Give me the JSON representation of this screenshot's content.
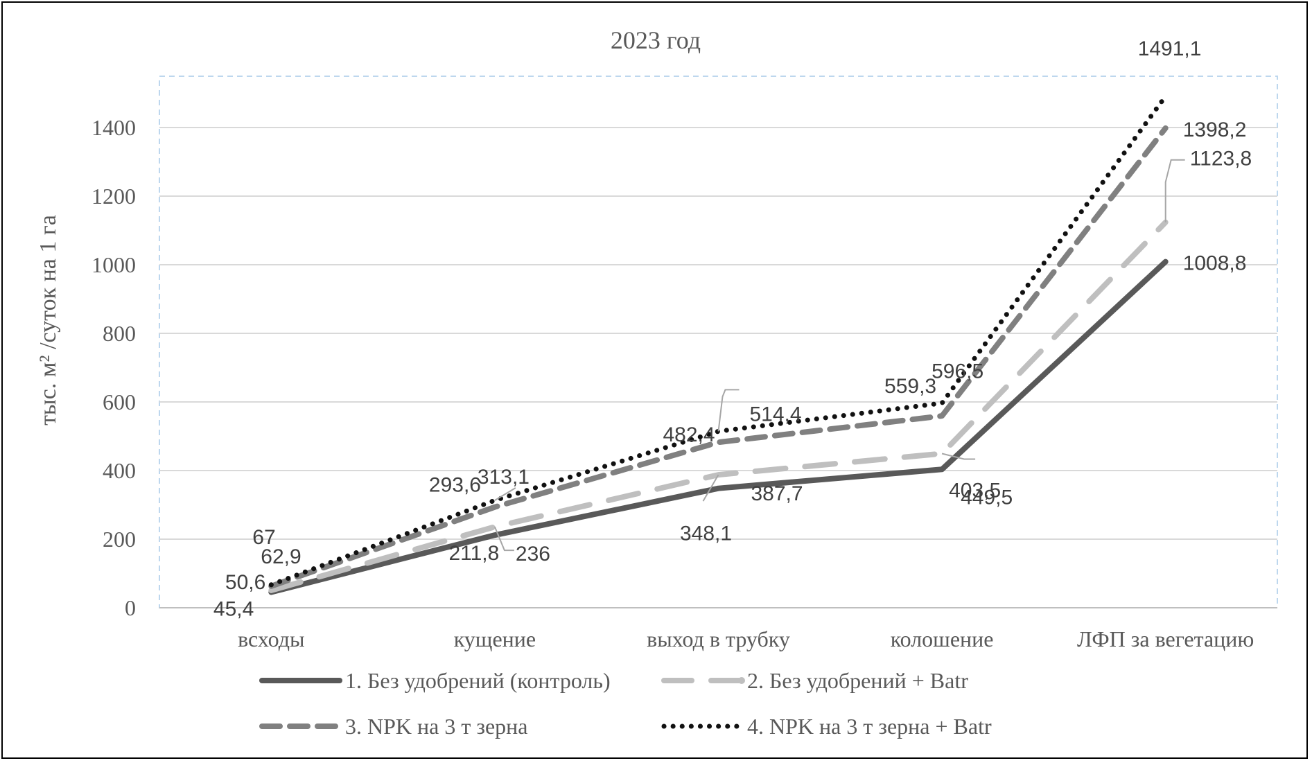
{
  "chart_data": {
    "type": "line",
    "title": "2023 год",
    "ylabel": "тыс. м² /суток на 1 га",
    "xlabel": "",
    "categories": [
      "всходы",
      "кущение",
      "выход в трубку",
      "колошение",
      "ЛФП за вегетацию"
    ],
    "ylim": [
      0,
      1400
    ],
    "yticks": [
      "0",
      "200",
      "400",
      "600",
      "800",
      "1000",
      "1200",
      "1400"
    ],
    "grid": true,
    "legend_position": "bottom",
    "series": [
      {
        "name": "1. Без удобрений (контроль)",
        "values": [
          45.4,
          211.8,
          348.1,
          403.5,
          1008.8
        ],
        "labels": [
          "45,4",
          "211,8",
          "348,1",
          "403,5",
          "1008,8"
        ],
        "color": "#595959",
        "style": "solid"
      },
      {
        "name": "2. Без удобрений + Batr",
        "values": [
          50.6,
          236,
          387.7,
          449.5,
          1123.8
        ],
        "labels": [
          "50,6",
          "236",
          "387,7",
          "449,5",
          "1123,8"
        ],
        "color": "#bfbfbf",
        "style": "long-dash"
      },
      {
        "name": "3. NPK на 3 т зерна",
        "values": [
          62.9,
          293.6,
          482.4,
          559.3,
          1398.2
        ],
        "labels": [
          "62,9",
          "293,6",
          "482,4",
          "559,3",
          "1398,2"
        ],
        "color": "#808080",
        "style": "dash"
      },
      {
        "name": "4. NPK на 3 т зерна + Batr",
        "values": [
          67,
          313.1,
          514.4,
          596.5,
          1491.1
        ],
        "labels": [
          "67",
          "313,1",
          "514,4",
          "596,5",
          "1491,1"
        ],
        "color": "#111111",
        "style": "dot"
      }
    ]
  }
}
